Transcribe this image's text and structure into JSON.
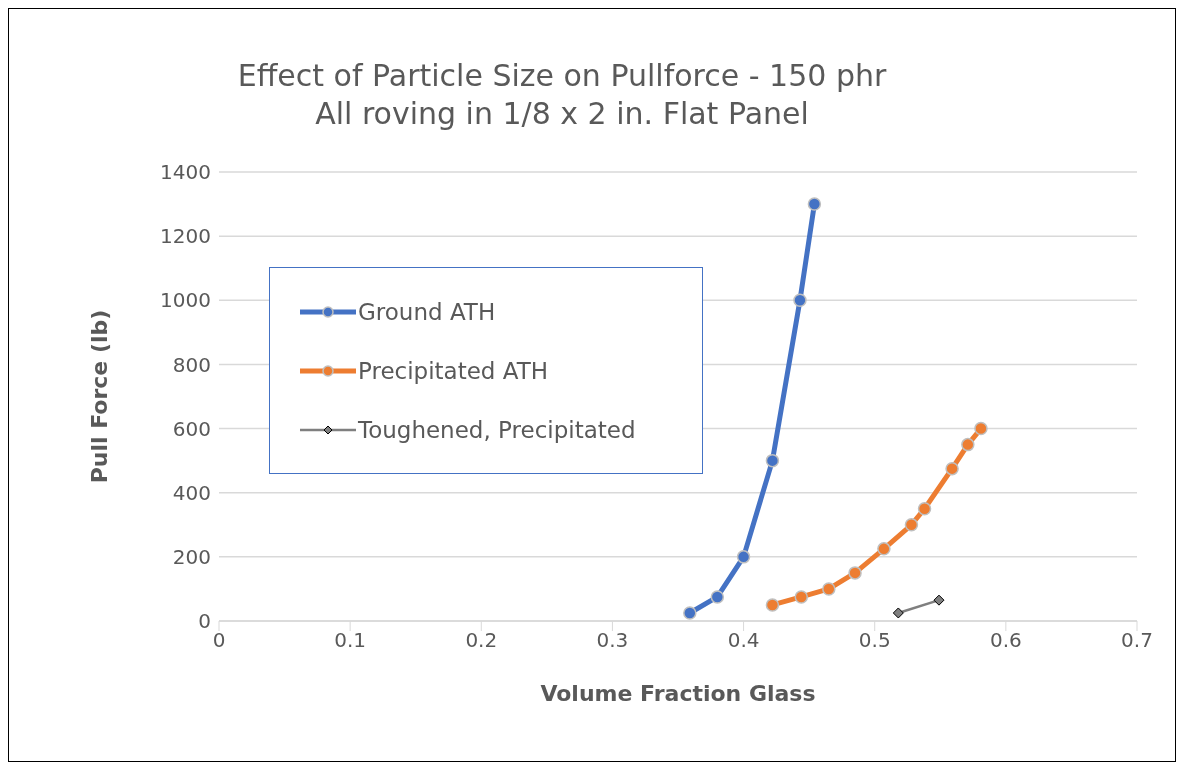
{
  "chart_data": {
    "type": "line",
    "title": "Effect of Particle Size on Pullforce - 150 phr",
    "subtitle": "All roving in 1/8 x 2 in. Flat Panel",
    "xlabel": "Volume Fraction Glass",
    "ylabel": "Pull Force (lb)",
    "xlim": [
      0,
      0.7
    ],
    "xticks": [
      0,
      0.1,
      0.2,
      0.3,
      0.4,
      0.5,
      0.6,
      0.7
    ],
    "ylim": [
      0,
      1400
    ],
    "yticks": [
      0,
      200,
      400,
      600,
      800,
      1000,
      1200,
      1400
    ],
    "grid": "y",
    "legend": "top left",
    "series": [
      {
        "name": "Ground ATH",
        "color": "#4472c4",
        "marker": "circle",
        "x": [
          0.359,
          0.38,
          0.4,
          0.422,
          0.443,
          0.454
        ],
        "values": [
          25,
          75,
          200,
          500,
          1000,
          1300
        ]
      },
      {
        "name": "Precipitated ATH",
        "color": "#ed7d31",
        "marker": "circle",
        "x": [
          0.422,
          0.444,
          0.465,
          0.485,
          0.507,
          0.528,
          0.538,
          0.559,
          0.571,
          0.581
        ],
        "values": [
          50,
          75,
          100,
          150,
          225,
          300,
          350,
          475,
          550,
          600
        ]
      },
      {
        "name": "Toughened, Precipitated",
        "color": "#7f7f7f",
        "marker": "diamond",
        "x": [
          0.518,
          0.549
        ],
        "values": [
          25,
          65
        ]
      }
    ]
  }
}
